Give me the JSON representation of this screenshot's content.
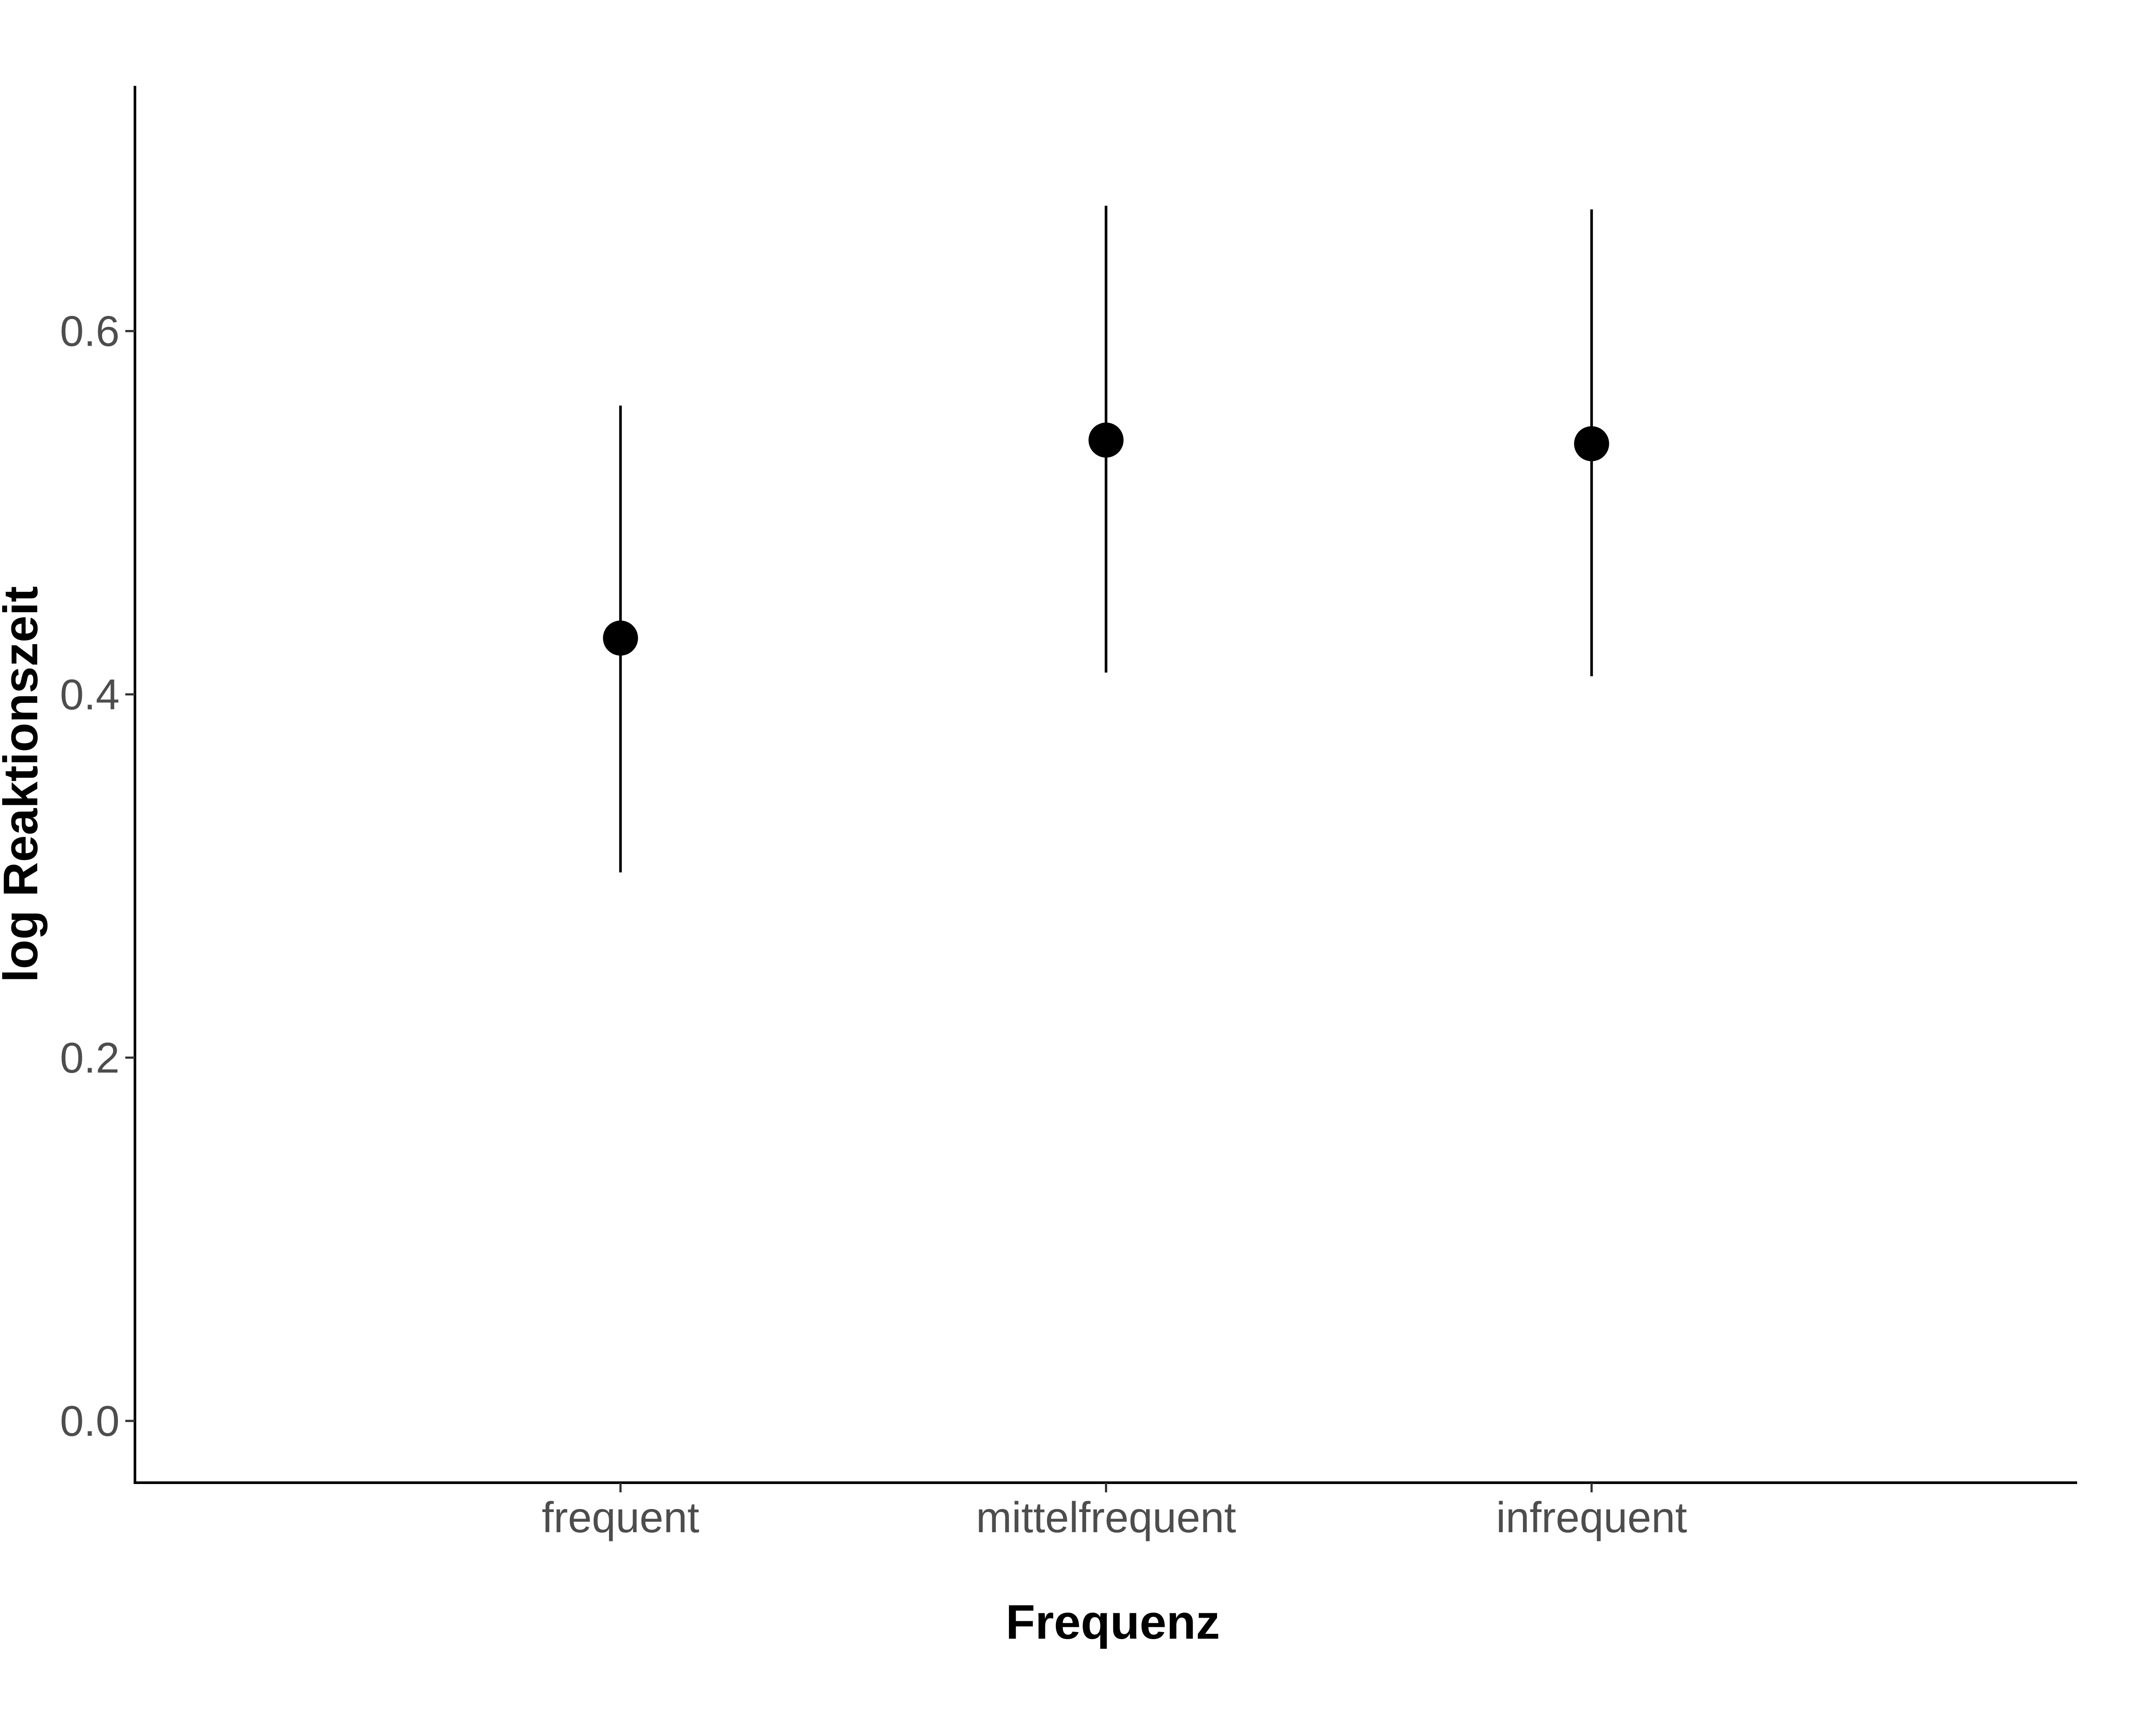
{
  "chart_data": {
    "type": "scatter",
    "subtype": "point-with-errorbars",
    "categories": [
      "frequent",
      "mittelfrequent",
      "infrequent"
    ],
    "series": [
      {
        "values": [
          0.431,
          0.54,
          0.538
        ],
        "lower": [
          0.302,
          0.412,
          0.41
        ],
        "upper": [
          0.559,
          0.669,
          0.667
        ]
      }
    ],
    "xlabel": "Frequenz",
    "ylabel": "log Reaktionszeit",
    "ylim": [
      -0.034,
      0.735
    ],
    "yticks": [
      0.0,
      0.2,
      0.4,
      0.6
    ],
    "ytick_labels": [
      "0.0",
      "0.2",
      "0.4",
      "0.6"
    ],
    "grid": false,
    "legend": "none",
    "colors": {
      "point": "#000000",
      "axis": "#000000",
      "tick_label": "#4d4d4d"
    }
  }
}
